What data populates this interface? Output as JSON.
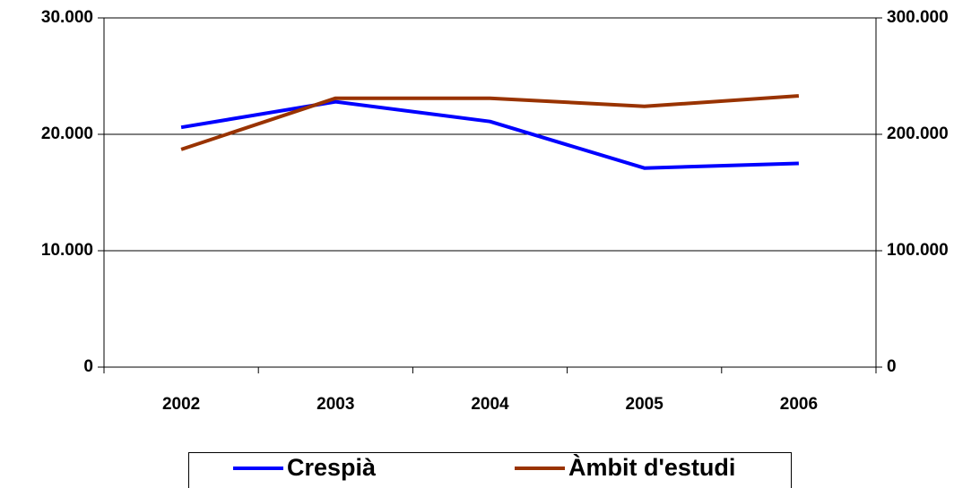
{
  "chart_data": {
    "type": "line",
    "categories": [
      "2002",
      "2003",
      "2004",
      "2005",
      "2006"
    ],
    "series": [
      {
        "name": "Crespià",
        "color": "#0000ff",
        "values": [
          20600,
          22800,
          21100,
          17100,
          17500
        ]
      },
      {
        "name": "Àmbit d'estudi",
        "color": "#993300",
        "axis": "y2",
        "values": [
          187000,
          231000,
          231000,
          224000,
          233000
        ]
      }
    ],
    "ylim": [
      0,
      30000
    ],
    "yticks": [
      0,
      {
        "value": 10000,
        "label": "10.000"
      },
      {
        "value": 20000,
        "label": "20.000"
      },
      {
        "value": 30000,
        "label": "30.000"
      }
    ],
    "y2lim": [
      0,
      300000
    ],
    "y2ticks": [
      0,
      {
        "value": 100000,
        "label": "100.000"
      },
      {
        "value": 200000,
        "label": "200.000"
      },
      {
        "value": 300000,
        "label": "300.000"
      }
    ],
    "grid": true,
    "legend": "bottom"
  }
}
